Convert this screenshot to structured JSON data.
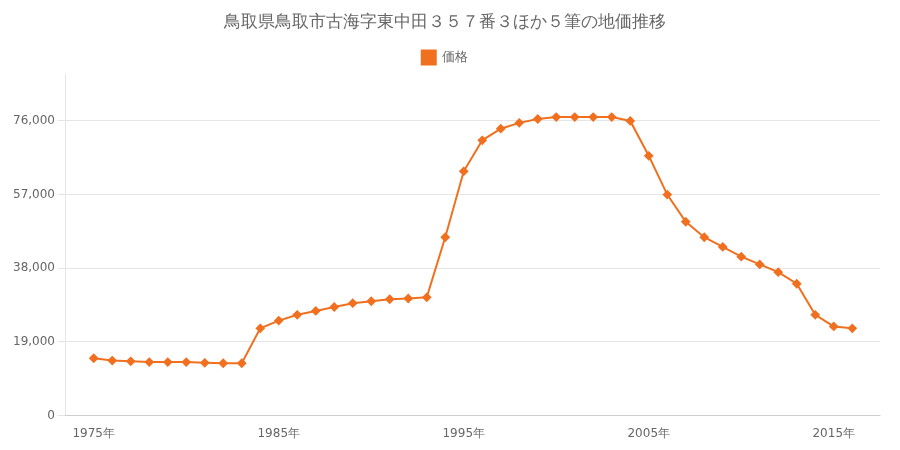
{
  "chart_data": {
    "type": "line",
    "title": "鳥取県鳥取市古海字東中田３５７番３ほか５筆の地価推移",
    "x": [
      1975,
      1976,
      1977,
      1978,
      1979,
      1980,
      1981,
      1982,
      1983,
      1984,
      1985,
      1986,
      1987,
      1988,
      1989,
      1990,
      1991,
      1992,
      1993,
      1994,
      1995,
      1996,
      1997,
      1998,
      1999,
      2000,
      2001,
      2002,
      2003,
      2004,
      2005,
      2006,
      2007,
      2008,
      2009,
      2010,
      2011,
      2012,
      2013,
      2014,
      2015,
      2016
    ],
    "series": [
      {
        "name": "価格",
        "color": "#f07020",
        "marker": "diamond",
        "values": [
          14800,
          14200,
          14000,
          13800,
          13800,
          13800,
          13600,
          13500,
          13500,
          22500,
          24500,
          26000,
          27000,
          28000,
          29000,
          29500,
          30000,
          30200,
          30500,
          46000,
          63000,
          71000,
          74000,
          75500,
          76500,
          77000,
          77000,
          77000,
          77000,
          76000,
          67000,
          57000,
          50000,
          46000,
          43500,
          41000,
          39000,
          37000,
          34000,
          26000,
          23000,
          22500
        ]
      }
    ],
    "xlim": [
      1973.5,
      2017.5
    ],
    "xticks": [
      {
        "value": 1975,
        "label": "1975年"
      },
      {
        "value": 1985,
        "label": "1985年"
      },
      {
        "value": 1995,
        "label": "1995年"
      },
      {
        "value": 2005,
        "label": "2005年"
      },
      {
        "value": 2015,
        "label": "2015年"
      }
    ],
    "ylim": [
      0,
      88000
    ],
    "yticks": [
      0,
      {
        "value": 19000,
        "label": "19,000"
      },
      {
        "value": 38000,
        "label": "38,000"
      },
      {
        "value": 57000,
        "label": "57,000"
      },
      {
        "value": 76000,
        "label": "76,000"
      }
    ],
    "grid": "y",
    "legend": "top"
  }
}
